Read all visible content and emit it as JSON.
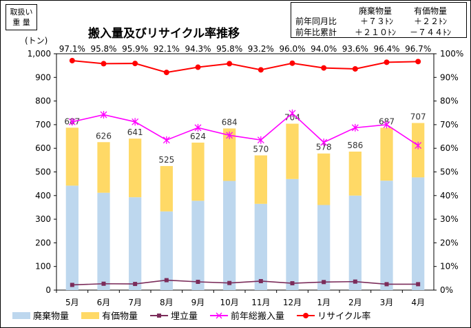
{
  "tag_box": {
    "line1": "取扱い",
    "line2": "重 量"
  },
  "summary_box": {
    "headers": [
      "廃棄物量",
      "有価物量"
    ],
    "rows": [
      {
        "label": "前年同月比",
        "waste": "＋７３ﾄﾝ",
        "valuable": "＋２２ﾄﾝ"
      },
      {
        "label": "前年比累計",
        "waste": "＋２１０ﾄﾝ",
        "valuable": "－７４４ﾄﾝ"
      }
    ]
  },
  "chart_data": {
    "type": "bar",
    "title": "搬入量及びリサイクル率推移",
    "ylabel": "(トン)",
    "ylim": [
      0,
      1000
    ],
    "y2lim": [
      0,
      100
    ],
    "y_ticks": [
      "0",
      "100",
      "200",
      "300",
      "400",
      "500",
      "600",
      "700",
      "800",
      "900",
      "1,000"
    ],
    "y2_ticks": [
      "0%",
      "10%",
      "20%",
      "30%",
      "40%",
      "50%",
      "60%",
      "70%",
      "80%",
      "90%",
      "100%"
    ],
    "categories": [
      "5月",
      "6月",
      "7月",
      "8月",
      "9月",
      "10月",
      "11月",
      "12月",
      "1月",
      "2月",
      "3月",
      "4月"
    ],
    "stacked": true,
    "series": [
      {
        "name": "廃棄物量",
        "kind": "bar",
        "color": "#bdd7ee",
        "values": [
          442,
          412,
          393,
          333,
          378,
          462,
          365,
          470,
          360,
          400,
          463,
          477
        ]
      },
      {
        "name": "有価物量",
        "kind": "bar",
        "color": "#ffd966",
        "values": [
          245,
          214,
          248,
          192,
          246,
          222,
          205,
          234,
          218,
          186,
          224,
          230
        ]
      },
      {
        "name": "埋立量",
        "kind": "line",
        "color": "#7b2c5a",
        "values": [
          22,
          27,
          26,
          42,
          35,
          30,
          38,
          29,
          34,
          36,
          25,
          25
        ]
      },
      {
        "name": "前年総搬入量",
        "kind": "line",
        "color": "#ff00ff",
        "values": [
          712,
          742,
          712,
          635,
          687,
          655,
          635,
          748,
          625,
          687,
          700,
          612
        ]
      },
      {
        "name": "リサイクル率",
        "kind": "line",
        "axis": "right",
        "color": "#ff0000",
        "values": [
          97.1,
          95.8,
          95.9,
          92.1,
          94.3,
          95.8,
          93.2,
          96.0,
          94.0,
          93.6,
          96.4,
          96.7
        ]
      }
    ],
    "total_labels": [
      "687",
      "626",
      "641",
      "525",
      "624",
      "684",
      "570",
      "704",
      "578",
      "586",
      "687",
      "707"
    ],
    "rate_labels": [
      "97.1%",
      "95.8%",
      "95.9%",
      "92.1%",
      "94.3%",
      "95.8%",
      "93.2%",
      "96.0%",
      "94.0%",
      "93.6%",
      "96.4%",
      "96.7%"
    ],
    "legend_position": "bottom",
    "grid": false
  }
}
